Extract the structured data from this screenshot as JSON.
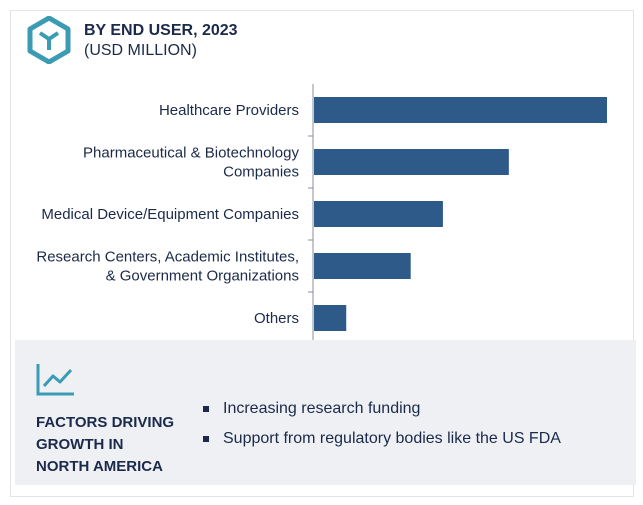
{
  "header": {
    "title": "BY END USER, 2023",
    "subtitle": "(USD MILLION)",
    "logo_icon": "cube-hexagon-icon"
  },
  "colors": {
    "bar": "#2e5a8a",
    "accent": "#3a9bb5",
    "text": "#1b2a4a",
    "panel_bg": "#eef0f4"
  },
  "chart_data": {
    "type": "bar",
    "orientation": "horizontal",
    "categories": [
      [
        "Healthcare Providers"
      ],
      [
        "Pharmaceutical & Biotechnology",
        "Companies"
      ],
      [
        "Medical Device/Equipment Companies"
      ],
      [
        "Research Centers, Academic Institutes,",
        "& Government Organizations"
      ],
      [
        "Others"
      ]
    ],
    "values": [
      100,
      66.5,
      44,
      33,
      11
    ],
    "xlim": [
      0,
      100
    ],
    "grid": false,
    "legend": "none"
  },
  "factors": {
    "icon": "trend-line-chart-icon",
    "title_lines": [
      "FACTORS DRIVING",
      "GROWTH IN",
      "NORTH AMERICA"
    ],
    "bullets": [
      "Increasing research funding",
      "Support from regulatory bodies like the US FDA"
    ]
  }
}
